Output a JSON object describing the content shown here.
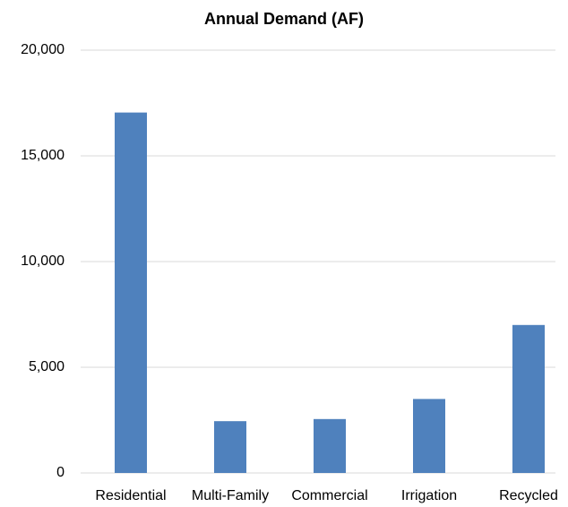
{
  "chart_data": {
    "type": "bar",
    "title": "Annual Demand (AF)",
    "categories": [
      "Residential",
      "Multi-Family",
      "Commercial",
      "Irrigation",
      "Recycled"
    ],
    "values": [
      17050,
      2450,
      2550,
      3500,
      7000
    ],
    "color": "#4f81bd",
    "ylim": [
      0,
      20000
    ],
    "yticks": [
      0,
      {
        "value": 5000,
        "label": "5,000"
      },
      {
        "value": 10000,
        "label": "10,000"
      },
      {
        "value": 15000,
        "label": "15,000"
      },
      {
        "value": 20000,
        "label": "20,000"
      }
    ],
    "grid": true
  }
}
